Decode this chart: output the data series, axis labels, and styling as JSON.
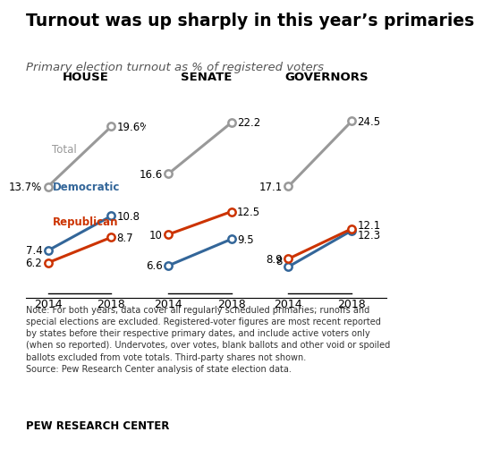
{
  "title": "Turnout was up sharply in this year’s primaries",
  "subtitle": "Primary election turnout as % of registered voters",
  "panels": [
    {
      "label": "HOUSE",
      "total": [
        13.7,
        19.6
      ],
      "democratic": [
        7.4,
        10.8
      ],
      "republican": [
        6.2,
        8.7
      ],
      "total_label_2014": "13.7%",
      "total_label_2018": "19.6%",
      "dem_label_2014": "7.4",
      "dem_label_2018": "10.8",
      "rep_label_2014": "6.2",
      "rep_label_2018": "8.7"
    },
    {
      "label": "SENATE",
      "total": [
        16.6,
        22.2
      ],
      "democratic": [
        6.6,
        9.5
      ],
      "republican": [
        10.0,
        12.5
      ],
      "total_label_2014": "16.6",
      "total_label_2018": "22.2",
      "dem_label_2014": "6.6",
      "dem_label_2018": "9.5",
      "rep_label_2014": "10",
      "rep_label_2018": "12.5"
    },
    {
      "label": "GOVERNORS",
      "total": [
        17.1,
        24.5
      ],
      "democratic": [
        8.0,
        12.1
      ],
      "republican": [
        8.9,
        12.3
      ],
      "total_label_2014": "17.1",
      "total_label_2018": "24.5",
      "dem_label_2014": "8",
      "dem_label_2018": "12.1",
      "rep_label_2014": "8.9",
      "rep_label_2018": "12.3"
    }
  ],
  "years": [
    2014,
    2018
  ],
  "color_total": "#999999",
  "color_dem": "#336699",
  "color_rep": "#cc3300",
  "note": "Note: For both years, data cover all regularly scheduled primaries; runoffs and\nspecial elections are excluded. Registered-voter figures are most recent reported\nby states before their respective primary dates, and include active voters only\n(when so reported). Undervotes, over votes, blank ballots and other void or spoiled\nballots excluded from vote totals. Third-party shares not shown.\nSource: Pew Research Center analysis of state election data.",
  "footer": "PEW RESEARCH CENTER",
  "bg_color": "#ffffff"
}
